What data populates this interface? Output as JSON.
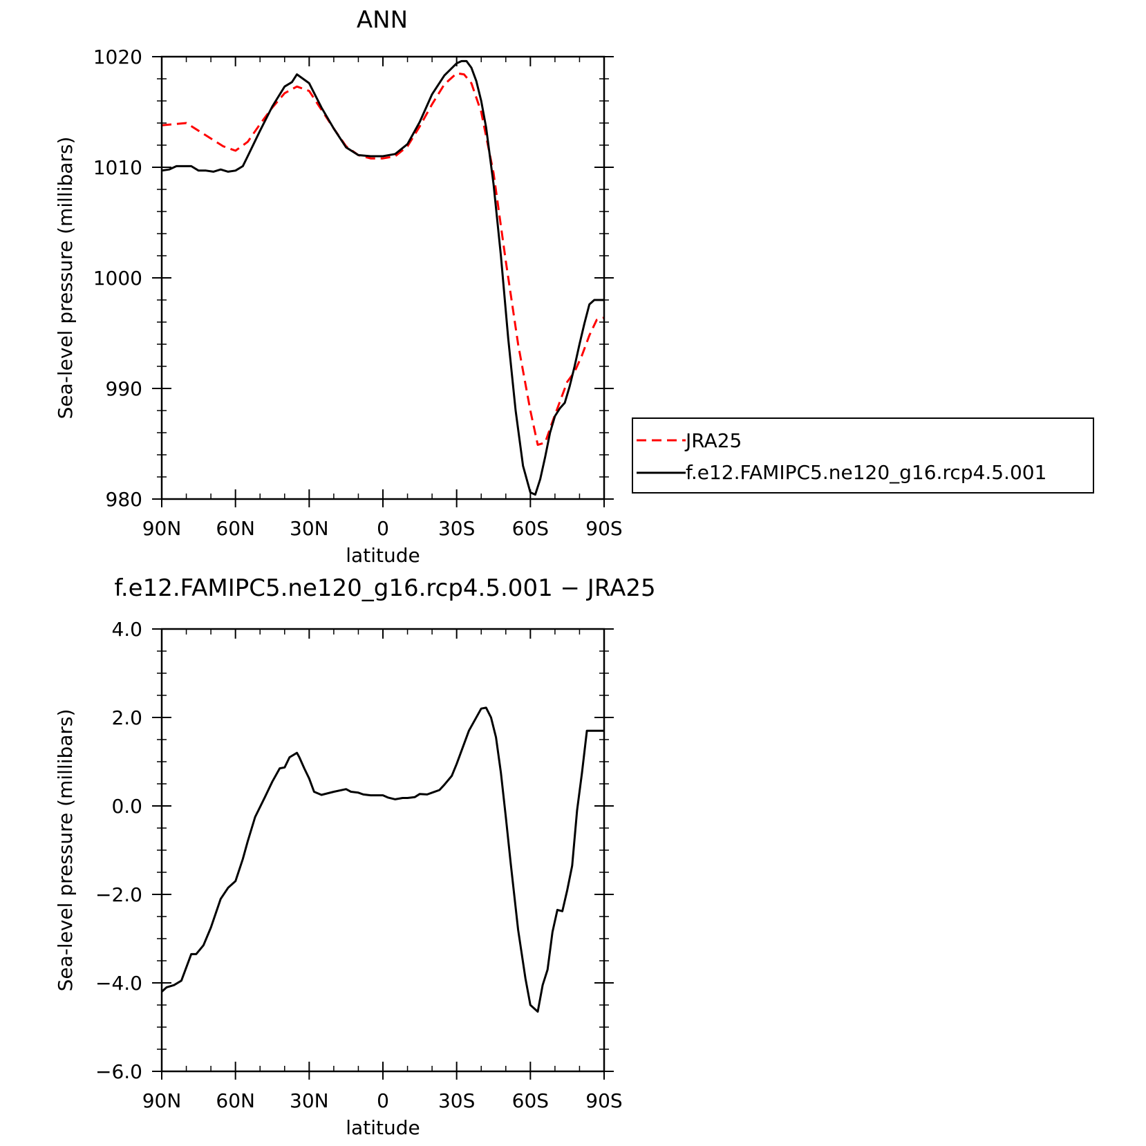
{
  "chart_data": [
    {
      "type": "line",
      "title": "ANN",
      "xlabel": "latitude",
      "ylabel": "Sea-level pressure (millibars)",
      "xlim": [
        90,
        -90
      ],
      "ylim": [
        980,
        1020
      ],
      "x_ticks": [
        90,
        60,
        30,
        0,
        -30,
        -60,
        -90
      ],
      "x_tick_labels": [
        "90N",
        "60N",
        "30N",
        "0",
        "30S",
        "60S",
        "90S"
      ],
      "y_ticks": [
        980,
        990,
        1000,
        1010,
        1020
      ],
      "y_tick_labels": [
        "980",
        "990",
        "1000",
        "1010",
        "1020"
      ],
      "legend_placement": "right",
      "series": [
        {
          "name": "JRA25",
          "color": "#ff0000",
          "style": "dashed",
          "x": [
            90,
            85,
            80,
            75,
            70,
            65,
            60,
            55,
            50,
            45,
            40,
            35,
            30,
            25,
            20,
            15,
            10,
            5,
            0,
            -5,
            -10,
            -15,
            -20,
            -25,
            -30,
            -33,
            -36,
            -40,
            -45,
            -50,
            -55,
            -60,
            -63,
            -66,
            -69,
            -72,
            -75,
            -78,
            -81,
            -84,
            -87,
            -90
          ],
          "y": [
            1013.8,
            1013.9,
            1014.0,
            1013.3,
            1012.6,
            1011.9,
            1011.5,
            1012.3,
            1013.9,
            1015.4,
            1016.7,
            1017.3,
            1016.9,
            1015.2,
            1013.5,
            1011.9,
            1011.1,
            1010.8,
            1010.8,
            1011.0,
            1011.9,
            1013.7,
            1015.7,
            1017.5,
            1018.5,
            1018.4,
            1017.6,
            1015.0,
            1009.5,
            1001.5,
            994.0,
            988.0,
            984.9,
            985.1,
            987.0,
            988.8,
            990.6,
            991.5,
            993.0,
            994.8,
            996.2,
            996.4
          ]
        },
        {
          "name": "f.e12.FAMIPC5.ne120_g16.rcp4.5.001",
          "color": "#000000",
          "style": "solid",
          "x": [
            90,
            87,
            84,
            81,
            78,
            75,
            72,
            69,
            66,
            63,
            60,
            57,
            55,
            50,
            45,
            40,
            37,
            35,
            30,
            25,
            20,
            15,
            10,
            5,
            0,
            -5,
            -10,
            -15,
            -20,
            -25,
            -30,
            -32,
            -34,
            -36,
            -38,
            -40,
            -42,
            -45,
            -48,
            -51,
            -54,
            -57,
            -60,
            -62,
            -64,
            -66,
            -68,
            -70,
            -72,
            -74,
            -76,
            -78,
            -80,
            -82,
            -84,
            -86,
            -88,
            -90
          ],
          "y": [
            1009.7,
            1009.8,
            1010.1,
            1010.1,
            1010.1,
            1009.7,
            1009.7,
            1009.6,
            1009.8,
            1009.6,
            1009.7,
            1010.1,
            1011.0,
            1013.3,
            1015.5,
            1017.3,
            1017.7,
            1018.4,
            1017.6,
            1015.4,
            1013.5,
            1011.8,
            1011.1,
            1011.0,
            1011.0,
            1011.2,
            1012.1,
            1014.1,
            1016.6,
            1018.3,
            1019.4,
            1019.6,
            1019.6,
            1019.0,
            1017.8,
            1016.0,
            1013.6,
            1008.5,
            1002.0,
            994.5,
            988.0,
            983.0,
            980.6,
            980.4,
            981.8,
            983.8,
            986.0,
            987.5,
            988.2,
            988.7,
            990.2,
            992.0,
            994.0,
            995.9,
            997.6,
            998.0,
            998.0,
            998.0
          ]
        }
      ]
    },
    {
      "type": "line",
      "title": "f.e12.FAMIPC5.ne120_g16.rcp4.5.001 − JRA25",
      "xlabel": "latitude",
      "ylabel": "Sea-level pressure (millibars)",
      "xlim": [
        90,
        -90
      ],
      "ylim": [
        -6.0,
        4.0
      ],
      "x_ticks": [
        90,
        60,
        30,
        0,
        -30,
        -60,
        -90
      ],
      "x_tick_labels": [
        "90N",
        "60N",
        "30N",
        "0",
        "30S",
        "60S",
        "90S"
      ],
      "y_ticks": [
        -6.0,
        -4.0,
        -2.0,
        0.0,
        2.0,
        4.0
      ],
      "y_tick_labels": [
        "−6.0",
        "−4.0",
        "−2.0",
        "0.0",
        "2.0",
        "4.0"
      ],
      "series": [
        {
          "color": "#000000",
          "style": "solid",
          "x": [
            90,
            88,
            85,
            82,
            78,
            76,
            73,
            70,
            66,
            63,
            60,
            57,
            55,
            52,
            48,
            45,
            42,
            40,
            38,
            35,
            34,
            32,
            30,
            28,
            25,
            20,
            15,
            13,
            10,
            8,
            5,
            2,
            0,
            -2,
            -5,
            -8,
            -10,
            -13,
            -15,
            -18,
            -20,
            -23,
            -25,
            -28,
            -30,
            -35,
            -40,
            -42,
            -44,
            -46,
            -48,
            -50,
            -52,
            -55,
            -58,
            -60,
            -61,
            -63,
            -65,
            -67,
            -69,
            -71,
            -73,
            -75,
            -77,
            -79,
            -81,
            -83,
            -85,
            -87,
            -89,
            -90
          ],
          "y": [
            -4.2,
            -4.1,
            -4.05,
            -3.95,
            -3.35,
            -3.35,
            -3.15,
            -2.75,
            -2.1,
            -1.85,
            -1.7,
            -1.2,
            -0.8,
            -0.25,
            0.2,
            0.55,
            0.85,
            0.87,
            1.1,
            1.2,
            1.1,
            0.85,
            0.62,
            0.32,
            0.25,
            0.32,
            0.38,
            0.32,
            0.3,
            0.26,
            0.24,
            0.24,
            0.24,
            0.19,
            0.15,
            0.18,
            0.18,
            0.2,
            0.27,
            0.26,
            0.3,
            0.36,
            0.48,
            0.68,
            0.95,
            1.7,
            2.2,
            2.22,
            2.0,
            1.55,
            0.75,
            -0.25,
            -1.3,
            -2.8,
            -3.9,
            -4.5,
            -4.55,
            -4.65,
            -4.05,
            -3.7,
            -2.85,
            -2.35,
            -2.38,
            -1.9,
            -1.35,
            -0.1,
            0.75,
            1.7,
            1.7,
            1.7,
            1.7,
            1.7
          ]
        }
      ]
    }
  ]
}
